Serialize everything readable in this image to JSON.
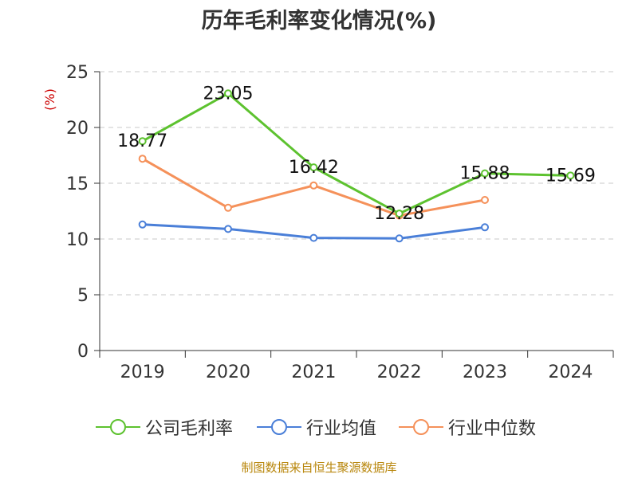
{
  "chart_data": {
    "type": "line",
    "title": "历年毛利率变化情况(%)",
    "ylabel": "(%)",
    "categories": [
      "2019",
      "2020",
      "2021",
      "2022",
      "2023",
      "2024"
    ],
    "ylim": [
      0,
      25
    ],
    "yticks": [
      0,
      5,
      10,
      15,
      20,
      25
    ],
    "grid": true,
    "legend_position": "bottom",
    "series": [
      {
        "name": "公司毛利率",
        "color": "#5dc22f",
        "values": [
          18.77,
          23.05,
          16.42,
          12.28,
          15.88,
          15.69
        ],
        "labels": [
          "18.77",
          "23.05",
          "16.42",
          "12.28",
          "15.88",
          "15.69"
        ]
      },
      {
        "name": "行业均值",
        "color": "#4a7fd8",
        "values": [
          11.3,
          10.9,
          10.1,
          10.05,
          11.05,
          null
        ]
      },
      {
        "name": "行业中位数",
        "color": "#f5915a",
        "values": [
          17.2,
          12.8,
          14.8,
          12.1,
          13.5,
          null
        ]
      }
    ]
  },
  "source": "制图数据来自恒生聚源数据库"
}
